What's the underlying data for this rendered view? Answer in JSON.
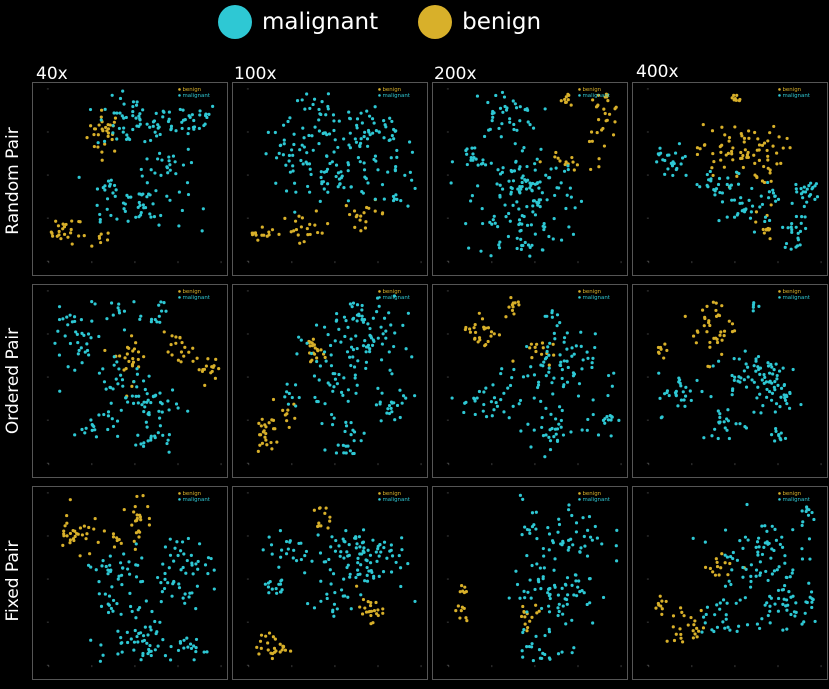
{
  "legend": {
    "malignant_label": "malignant",
    "benign_label": "benign",
    "malignant_color": "#2ec8d4",
    "benign_color": "#d8b02a"
  },
  "columns": [
    "40x",
    "100x",
    "200x",
    "400x"
  ],
  "rows": [
    "Random Pair",
    "Ordered Pair",
    "Fixed Pair"
  ],
  "panel_legend": {
    "benign": "benign",
    "malignant": "malignant"
  },
  "chart_data": [
    {
      "type": "scatter",
      "row": "Random Pair",
      "column": "40x",
      "xlim": [
        -40,
        40
      ],
      "ylim": [
        -40,
        40
      ],
      "legend": "top-right",
      "series": [
        {
          "name": "benign",
          "clusters": [
            {
              "cx": -14,
              "cy": 20,
              "sx": 4,
              "sy": 5,
              "n": 30
            },
            {
              "cx": -32,
              "cy": -26,
              "sx": 4,
              "sy": 3,
              "n": 25
            },
            {
              "cx": -20,
              "cy": -30,
              "sx": 5,
              "sy": 2,
              "n": 8
            }
          ]
        },
        {
          "name": "malignant",
          "clusters": [
            {
              "cx": 0,
              "cy": 24,
              "sx": 9,
              "sy": 6,
              "n": 60
            },
            {
              "cx": 24,
              "cy": 26,
              "sx": 8,
              "sy": 4,
              "n": 30
            },
            {
              "cx": 16,
              "cy": 6,
              "sx": 6,
              "sy": 4,
              "n": 20
            },
            {
              "cx": -12,
              "cy": -8,
              "sx": 4,
              "sy": 6,
              "n": 20
            },
            {
              "cx": 4,
              "cy": -14,
              "sx": 10,
              "sy": 6,
              "n": 45
            }
          ]
        }
      ]
    },
    {
      "type": "scatter",
      "row": "Random Pair",
      "column": "100x",
      "xlim": [
        -40,
        40
      ],
      "ylim": [
        -40,
        40
      ],
      "legend": "top-right",
      "series": [
        {
          "name": "benign",
          "clusters": [
            {
              "cx": -34,
              "cy": -26,
              "sx": 3,
              "sy": 2,
              "n": 14
            },
            {
              "cx": -14,
              "cy": -26,
              "sx": 6,
              "sy": 4,
              "n": 22
            },
            {
              "cx": 14,
              "cy": -18,
              "sx": 5,
              "sy": 3,
              "n": 18
            }
          ]
        },
        {
          "name": "malignant",
          "clusters": [
            {
              "cx": -8,
              "cy": 28,
              "sx": 8,
              "sy": 5,
              "n": 30
            },
            {
              "cx": 16,
              "cy": 20,
              "sx": 10,
              "sy": 6,
              "n": 50
            },
            {
              "cx": -20,
              "cy": 8,
              "sx": 8,
              "sy": 8,
              "n": 40
            },
            {
              "cx": 4,
              "cy": -2,
              "sx": 10,
              "sy": 6,
              "n": 50
            },
            {
              "cx": 28,
              "cy": 0,
              "sx": 6,
              "sy": 8,
              "n": 25
            }
          ]
        }
      ]
    },
    {
      "type": "scatter",
      "row": "Random Pair",
      "column": "200x",
      "xlim": [
        -40,
        40
      ],
      "ylim": [
        -40,
        40
      ],
      "legend": "top-right",
      "series": [
        {
          "name": "benign",
          "clusters": [
            {
              "cx": 16,
              "cy": 36,
              "sx": 2,
              "sy": 2,
              "n": 10
            },
            {
              "cx": 32,
              "cy": 28,
              "sx": 4,
              "sy": 6,
              "n": 28
            },
            {
              "cx": 14,
              "cy": 6,
              "sx": 5,
              "sy": 2,
              "n": 14
            }
          ]
        },
        {
          "name": "malignant",
          "clusters": [
            {
              "cx": -14,
              "cy": 28,
              "sx": 8,
              "sy": 6,
              "n": 40
            },
            {
              "cx": -30,
              "cy": 6,
              "sx": 4,
              "sy": 4,
              "n": 16
            },
            {
              "cx": -4,
              "cy": -6,
              "sx": 12,
              "sy": 10,
              "n": 110
            },
            {
              "cx": -6,
              "cy": -28,
              "sx": 10,
              "sy": 5,
              "n": 40
            }
          ]
        }
      ]
    },
    {
      "type": "scatter",
      "row": "Random Pair",
      "column": "400x",
      "xlim": [
        -40,
        40
      ],
      "ylim": [
        -40,
        40
      ],
      "legend": "top-right",
      "series": [
        {
          "name": "benign",
          "clusters": [
            {
              "cx": 0,
              "cy": 36,
              "sx": 2,
              "sy": 1.5,
              "n": 10
            },
            {
              "cx": 2,
              "cy": 10,
              "sx": 10,
              "sy": 7,
              "n": 80
            },
            {
              "cx": 14,
              "cy": -24,
              "sx": 2,
              "sy": 5,
              "n": 12
            }
          ]
        },
        {
          "name": "malignant",
          "clusters": [
            {
              "cx": -30,
              "cy": 6,
              "sx": 5,
              "sy": 4,
              "n": 24
            },
            {
              "cx": -6,
              "cy": -6,
              "sx": 8,
              "sy": 4,
              "n": 30
            },
            {
              "cx": 6,
              "cy": -16,
              "sx": 6,
              "sy": 4,
              "n": 25
            },
            {
              "cx": 34,
              "cy": -8,
              "sx": 3,
              "sy": 3,
              "n": 22
            },
            {
              "cx": 28,
              "cy": -26,
              "sx": 3,
              "sy": 4,
              "n": 22
            },
            {
              "cx": 18,
              "cy": -10,
              "sx": 4,
              "sy": 3,
              "n": 10
            }
          ]
        }
      ]
    },
    {
      "type": "scatter",
      "row": "Ordered Pair",
      "column": "40x",
      "xlim": [
        -40,
        40
      ],
      "ylim": [
        -40,
        40
      ],
      "legend": "top-right",
      "series": [
        {
          "name": "benign",
          "clusters": [
            {
              "cx": -2,
              "cy": 10,
              "sx": 4,
              "sy": 6,
              "n": 25
            },
            {
              "cx": 20,
              "cy": 12,
              "sx": 4,
              "sy": 4,
              "n": 18
            },
            {
              "cx": 34,
              "cy": 4,
              "sx": 3,
              "sy": 3,
              "n": 16
            }
          ]
        },
        {
          "name": "malignant",
          "clusters": [
            {
              "cx": -24,
              "cy": 16,
              "sx": 8,
              "sy": 8,
              "n": 40
            },
            {
              "cx": -8,
              "cy": 30,
              "sx": 6,
              "sy": 4,
              "n": 15
            },
            {
              "cx": 12,
              "cy": 32,
              "sx": 2,
              "sy": 3,
              "n": 10
            },
            {
              "cx": -6,
              "cy": -4,
              "sx": 6,
              "sy": 5,
              "n": 25
            },
            {
              "cx": 8,
              "cy": -14,
              "sx": 6,
              "sy": 6,
              "n": 40
            },
            {
              "cx": -18,
              "cy": -22,
              "sx": 5,
              "sy": 4,
              "n": 20
            },
            {
              "cx": 10,
              "cy": -30,
              "sx": 4,
              "sy": 3,
              "n": 14
            }
          ]
        }
      ]
    },
    {
      "type": "scatter",
      "row": "Ordered Pair",
      "column": "100x",
      "xlim": [
        -40,
        40
      ],
      "ylim": [
        -40,
        40
      ],
      "legend": "top-right",
      "series": [
        {
          "name": "benign",
          "clusters": [
            {
              "cx": -10,
              "cy": 12,
              "sx": 2,
              "sy": 4,
              "n": 20
            },
            {
              "cx": -32,
              "cy": -26,
              "sx": 3,
              "sy": 6,
              "n": 26
            },
            {
              "cx": -22,
              "cy": -16,
              "sx": 2,
              "sy": 3,
              "n": 8
            }
          ]
        },
        {
          "name": "malignant",
          "clusters": [
            {
              "cx": 14,
              "cy": 18,
              "sx": 12,
              "sy": 12,
              "n": 100
            },
            {
              "cx": -2,
              "cy": -4,
              "sx": 6,
              "sy": 6,
              "n": 30
            },
            {
              "cx": 26,
              "cy": -12,
              "sx": 5,
              "sy": 4,
              "n": 22
            },
            {
              "cx": 6,
              "cy": -28,
              "sx": 4,
              "sy": 5,
              "n": 24
            },
            {
              "cx": -22,
              "cy": -8,
              "sx": 2,
              "sy": 3,
              "n": 8
            }
          ]
        }
      ]
    },
    {
      "type": "scatter",
      "row": "Ordered Pair",
      "column": "200x",
      "xlim": [
        -40,
        40
      ],
      "ylim": [
        -40,
        40
      ],
      "legend": "top-right",
      "series": [
        {
          "name": "benign",
          "clusters": [
            {
              "cx": -24,
              "cy": 22,
              "sx": 5,
              "sy": 5,
              "n": 26
            },
            {
              "cx": -10,
              "cy": 34,
              "sx": 2,
              "sy": 2,
              "n": 10
            },
            {
              "cx": 0,
              "cy": 12,
              "sx": 4,
              "sy": 3,
              "n": 14
            }
          ]
        },
        {
          "name": "malignant",
          "clusters": [
            {
              "cx": 8,
              "cy": 4,
              "sx": 10,
              "sy": 8,
              "n": 70
            },
            {
              "cx": -24,
              "cy": -12,
              "sx": 8,
              "sy": 5,
              "n": 30
            },
            {
              "cx": 8,
              "cy": -24,
              "sx": 6,
              "sy": 6,
              "n": 30
            },
            {
              "cx": 30,
              "cy": -18,
              "sx": 4,
              "sy": 5,
              "n": 20
            },
            {
              "cx": 8,
              "cy": 26,
              "sx": 2,
              "sy": 3,
              "n": 8
            }
          ]
        }
      ]
    },
    {
      "type": "scatter",
      "row": "Ordered Pair",
      "column": "400x",
      "xlim": [
        -40,
        40
      ],
      "ylim": [
        -40,
        40
      ],
      "legend": "top-right",
      "series": [
        {
          "name": "benign",
          "clusters": [
            {
              "cx": -10,
              "cy": 24,
              "sx": 5,
              "sy": 8,
              "n": 40
            },
            {
              "cx": -32,
              "cy": 12,
              "sx": 2,
              "sy": 3,
              "n": 8
            }
          ]
        },
        {
          "name": "malignant",
          "clusters": [
            {
              "cx": 10,
              "cy": 2,
              "sx": 10,
              "sy": 6,
              "n": 60
            },
            {
              "cx": -24,
              "cy": -8,
              "sx": 6,
              "sy": 5,
              "n": 30
            },
            {
              "cx": 20,
              "cy": -10,
              "sx": 6,
              "sy": 4,
              "n": 25
            },
            {
              "cx": -4,
              "cy": -22,
              "sx": 6,
              "sy": 4,
              "n": 20
            },
            {
              "cx": 20,
              "cy": -28,
              "sx": 2,
              "sy": 3,
              "n": 10
            },
            {
              "cx": 10,
              "cy": 34,
              "sx": 1.5,
              "sy": 1.5,
              "n": 5
            }
          ]
        }
      ]
    },
    {
      "type": "scatter",
      "row": "Fixed Pair",
      "column": "40x",
      "xlim": [
        -40,
        40
      ],
      "ylim": [
        -40,
        40
      ],
      "legend": "top-right",
      "series": [
        {
          "name": "benign",
          "clusters": [
            {
              "cx": -28,
              "cy": 22,
              "sx": 4,
              "sy": 6,
              "n": 30
            },
            {
              "cx": 2,
              "cy": 30,
              "sx": 3,
              "sy": 6,
              "n": 24
            },
            {
              "cx": -10,
              "cy": 18,
              "sx": 3,
              "sy": 2,
              "n": 8
            }
          ]
        },
        {
          "name": "malignant",
          "clusters": [
            {
              "cx": -10,
              "cy": 4,
              "sx": 8,
              "sy": 5,
              "n": 30
            },
            {
              "cx": 20,
              "cy": 4,
              "sx": 8,
              "sy": 8,
              "n": 60
            },
            {
              "cx": -6,
              "cy": -12,
              "sx": 6,
              "sy": 4,
              "n": 18
            },
            {
              "cx": 4,
              "cy": -30,
              "sx": 10,
              "sy": 5,
              "n": 50
            },
            {
              "cx": 26,
              "cy": -32,
              "sx": 3,
              "sy": 3,
              "n": 12
            }
          ]
        }
      ]
    },
    {
      "type": "scatter",
      "row": "Fixed Pair",
      "column": "100x",
      "xlim": [
        -40,
        40
      ],
      "ylim": [
        -40,
        40
      ],
      "legend": "top-right",
      "series": [
        {
          "name": "benign",
          "clusters": [
            {
              "cx": -6,
              "cy": 28,
              "sx": 2,
              "sy": 3,
              "n": 12
            },
            {
              "cx": 16,
              "cy": -14,
              "sx": 3,
              "sy": 3,
              "n": 22
            },
            {
              "cx": -28,
              "cy": -32,
              "sx": 4,
              "sy": 3,
              "n": 26
            }
          ]
        },
        {
          "name": "malignant",
          "clusters": [
            {
              "cx": 10,
              "cy": 10,
              "sx": 12,
              "sy": 8,
              "n": 100
            },
            {
              "cx": -22,
              "cy": 14,
              "sx": 5,
              "sy": 4,
              "n": 20
            },
            {
              "cx": -28,
              "cy": -4,
              "sx": 4,
              "sy": 3,
              "n": 15
            },
            {
              "cx": -4,
              "cy": -10,
              "sx": 5,
              "sy": 4,
              "n": 16
            }
          ]
        }
      ]
    },
    {
      "type": "scatter",
      "row": "Fixed Pair",
      "column": "200x",
      "xlim": [
        -40,
        40
      ],
      "ylim": [
        -40,
        40
      ],
      "legend": "top-right",
      "series": [
        {
          "name": "benign",
          "clusters": [
            {
              "cx": -34,
              "cy": -4,
              "sx": 1.5,
              "sy": 2,
              "n": 6
            },
            {
              "cx": -34,
              "cy": -16,
              "sx": 1.5,
              "sy": 2,
              "n": 8
            },
            {
              "cx": -4,
              "cy": -20,
              "sx": 4,
              "sy": 4,
              "n": 14
            }
          ]
        },
        {
          "name": "malignant",
          "clusters": [
            {
              "cx": 14,
              "cy": 22,
              "sx": 10,
              "sy": 8,
              "n": 50
            },
            {
              "cx": 10,
              "cy": -4,
              "sx": 10,
              "sy": 10,
              "n": 80
            },
            {
              "cx": 4,
              "cy": -32,
              "sx": 8,
              "sy": 4,
              "n": 20
            }
          ]
        }
      ]
    },
    {
      "type": "scatter",
      "row": "Fixed Pair",
      "column": "400x",
      "xlim": [
        -40,
        40
      ],
      "ylim": [
        -40,
        40
      ],
      "legend": "top-right",
      "series": [
        {
          "name": "benign",
          "clusters": [
            {
              "cx": -6,
              "cy": 6,
              "sx": 4,
              "sy": 3,
              "n": 14
            },
            {
              "cx": -22,
              "cy": -22,
              "sx": 6,
              "sy": 4,
              "n": 25
            },
            {
              "cx": -34,
              "cy": -12,
              "sx": 1.5,
              "sy": 3,
              "n": 8
            }
          ]
        },
        {
          "name": "malignant",
          "clusters": [
            {
              "cx": 10,
              "cy": 10,
              "sx": 10,
              "sy": 10,
              "n": 80
            },
            {
              "cx": 24,
              "cy": -12,
              "sx": 8,
              "sy": 6,
              "n": 40
            },
            {
              "cx": -4,
              "cy": -20,
              "sx": 6,
              "sy": 5,
              "n": 25
            },
            {
              "cx": 34,
              "cy": 30,
              "sx": 2,
              "sy": 4,
              "n": 10
            }
          ]
        }
      ]
    }
  ]
}
